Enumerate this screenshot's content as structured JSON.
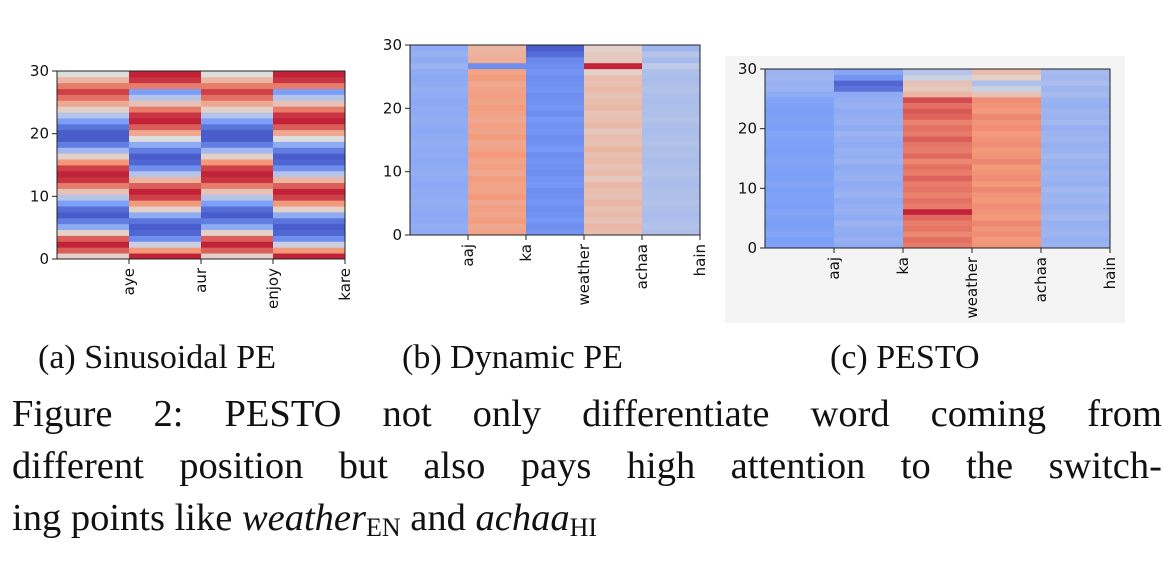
{
  "chart_data": [
    {
      "type": "heatmap",
      "panel_caption": "(a) Sinusoidal PE",
      "colormap": "coolwarm",
      "x_tick_labels": [
        "aye",
        "aur",
        "enjoy",
        "kare"
      ],
      "y_ticks": [
        0,
        10,
        20,
        30
      ],
      "ylim": [
        0,
        30
      ],
      "rows": 32,
      "columns": [
        {
          "label": "aye",
          "values": [
            0.55,
            0.85,
            0.95,
            0.85,
            0.55,
            0.3,
            0.15,
            0.05,
            0.1,
            0.25,
            0.4,
            0.6,
            0.8,
            0.92,
            0.95,
            0.9,
            0.75,
            0.55,
            0.35,
            0.15,
            0.05,
            0.05,
            0.12,
            0.25,
            0.4,
            0.55,
            0.7,
            0.82,
            0.9,
            0.8,
            0.65,
            0.5
          ]
        },
        {
          "label": "aur",
          "values": [
            0.95,
            0.75,
            0.45,
            0.2,
            0.08,
            0.05,
            0.12,
            0.3,
            0.55,
            0.75,
            0.9,
            0.95,
            0.85,
            0.65,
            0.4,
            0.2,
            0.08,
            0.05,
            0.15,
            0.3,
            0.5,
            0.7,
            0.85,
            0.95,
            0.92,
            0.8,
            0.6,
            0.4,
            0.25,
            0.8,
            0.92,
            0.95
          ]
        },
        {
          "label": "enjoy",
          "values": [
            0.55,
            0.85,
            0.95,
            0.85,
            0.55,
            0.3,
            0.15,
            0.05,
            0.1,
            0.25,
            0.4,
            0.6,
            0.8,
            0.92,
            0.95,
            0.9,
            0.75,
            0.55,
            0.35,
            0.15,
            0.05,
            0.05,
            0.12,
            0.25,
            0.4,
            0.55,
            0.7,
            0.82,
            0.9,
            0.8,
            0.65,
            0.5
          ]
        },
        {
          "label": "kare",
          "values": [
            0.95,
            0.75,
            0.45,
            0.2,
            0.08,
            0.05,
            0.12,
            0.3,
            0.55,
            0.75,
            0.9,
            0.95,
            0.85,
            0.65,
            0.4,
            0.2,
            0.08,
            0.05,
            0.15,
            0.3,
            0.5,
            0.7,
            0.85,
            0.95,
            0.92,
            0.8,
            0.6,
            0.4,
            0.25,
            0.8,
            0.92,
            0.95
          ]
        }
      ]
    },
    {
      "type": "heatmap",
      "panel_caption": "(b) Dynamic PE",
      "colormap": "coolwarm",
      "x_tick_labels": [
        "aaj",
        "ka",
        "weather",
        "achaa",
        "hain"
      ],
      "y_ticks": [
        0,
        10,
        20,
        30
      ],
      "ylim": [
        0,
        30
      ],
      "rows": 32,
      "columns": [
        {
          "label": "aaj",
          "values": [
            0.3,
            0.31,
            0.3,
            0.29,
            0.3,
            0.31,
            0.3,
            0.3,
            0.29,
            0.3,
            0.31,
            0.3,
            0.29,
            0.3,
            0.3,
            0.31,
            0.3,
            0.29,
            0.3,
            0.31,
            0.3,
            0.3,
            0.29,
            0.3,
            0.31,
            0.3,
            0.29,
            0.3,
            0.33,
            0.3,
            0.32,
            0.3
          ]
        },
        {
          "label": "ka",
          "values": [
            0.72,
            0.7,
            0.74,
            0.71,
            0.73,
            0.7,
            0.75,
            0.71,
            0.72,
            0.74,
            0.7,
            0.73,
            0.71,
            0.75,
            0.72,
            0.7,
            0.74,
            0.71,
            0.73,
            0.7,
            0.72,
            0.74,
            0.71,
            0.73,
            0.72,
            0.7,
            0.74,
            0.72,
            0.2,
            0.68,
            0.66,
            0.65
          ]
        },
        {
          "label": "weather",
          "values": [
            0.22,
            0.2,
            0.23,
            0.21,
            0.2,
            0.22,
            0.21,
            0.2,
            0.23,
            0.22,
            0.2,
            0.21,
            0.22,
            0.2,
            0.23,
            0.21,
            0.2,
            0.22,
            0.21,
            0.23,
            0.2,
            0.22,
            0.21,
            0.2,
            0.22,
            0.21,
            0.2,
            0.22,
            0.2,
            0.18,
            0.1,
            0.05
          ]
        },
        {
          "label": "achaa",
          "values": [
            0.62,
            0.64,
            0.6,
            0.63,
            0.61,
            0.65,
            0.6,
            0.62,
            0.64,
            0.58,
            0.62,
            0.6,
            0.63,
            0.61,
            0.65,
            0.6,
            0.62,
            0.58,
            0.63,
            0.61,
            0.6,
            0.64,
            0.62,
            0.6,
            0.63,
            0.61,
            0.62,
            0.55,
            0.95,
            0.58,
            0.57,
            0.55
          ]
        },
        {
          "label": "hain",
          "values": [
            0.38,
            0.39,
            0.38,
            0.37,
            0.38,
            0.39,
            0.38,
            0.38,
            0.37,
            0.38,
            0.39,
            0.38,
            0.37,
            0.38,
            0.38,
            0.39,
            0.38,
            0.37,
            0.38,
            0.39,
            0.38,
            0.38,
            0.37,
            0.38,
            0.39,
            0.38,
            0.37,
            0.38,
            0.42,
            0.36,
            0.4,
            0.34
          ]
        }
      ]
    },
    {
      "type": "heatmap",
      "panel_caption": "(c) PESTO",
      "colormap": "coolwarm",
      "x_tick_labels": [
        "aaj",
        "ka",
        "weather",
        "achaa",
        "hain"
      ],
      "y_ticks": [
        0,
        10,
        20,
        30
      ],
      "ylim": [
        0,
        30
      ],
      "rows": 32,
      "columns": [
        {
          "label": "aaj",
          "values": [
            0.26,
            0.25,
            0.27,
            0.26,
            0.25,
            0.26,
            0.27,
            0.25,
            0.26,
            0.26,
            0.25,
            0.27,
            0.26,
            0.25,
            0.26,
            0.27,
            0.26,
            0.25,
            0.26,
            0.26,
            0.27,
            0.25,
            0.26,
            0.26,
            0.25,
            0.26,
            0.27,
            0.3,
            0.33,
            0.32,
            0.34,
            0.33
          ]
        },
        {
          "label": "ka",
          "values": [
            0.3,
            0.32,
            0.3,
            0.31,
            0.33,
            0.3,
            0.32,
            0.31,
            0.3,
            0.33,
            0.31,
            0.3,
            0.32,
            0.31,
            0.3,
            0.33,
            0.31,
            0.32,
            0.3,
            0.31,
            0.33,
            0.3,
            0.32,
            0.31,
            0.3,
            0.32,
            0.31,
            0.3,
            0.12,
            0.08,
            0.22,
            0.28
          ]
        },
        {
          "label": "weather",
          "values": [
            0.8,
            0.82,
            0.78,
            0.81,
            0.8,
            0.83,
            0.95,
            0.8,
            0.82,
            0.79,
            0.81,
            0.8,
            0.84,
            0.8,
            0.82,
            0.78,
            0.83,
            0.8,
            0.81,
            0.85,
            0.8,
            0.82,
            0.79,
            0.84,
            0.86,
            0.82,
            0.88,
            0.65,
            0.58,
            0.6,
            0.45,
            0.4
          ]
        },
        {
          "label": "achaa",
          "values": [
            0.76,
            0.75,
            0.77,
            0.76,
            0.78,
            0.75,
            0.76,
            0.77,
            0.75,
            0.76,
            0.78,
            0.75,
            0.77,
            0.76,
            0.75,
            0.78,
            0.76,
            0.75,
            0.77,
            0.76,
            0.75,
            0.77,
            0.76,
            0.78,
            0.75,
            0.76,
            0.77,
            0.6,
            0.45,
            0.38,
            0.55,
            0.62
          ]
        },
        {
          "label": "hain",
          "values": [
            0.33,
            0.32,
            0.34,
            0.33,
            0.32,
            0.35,
            0.33,
            0.32,
            0.34,
            0.33,
            0.35,
            0.32,
            0.33,
            0.34,
            0.32,
            0.33,
            0.35,
            0.33,
            0.32,
            0.34,
            0.33,
            0.32,
            0.35,
            0.33,
            0.34,
            0.32,
            0.33,
            0.36,
            0.34,
            0.37,
            0.35,
            0.36
          ]
        }
      ]
    }
  ],
  "figure_caption": {
    "line1": "Figure 2: PESTO not only differentiate word coming from",
    "line2": "different position but also pays high attention to the switch-",
    "line3_prefix": "ing points like ",
    "word1": "weather",
    "sub1": "EN",
    "line3_middle": " and ",
    "word2": "achaa",
    "sub2": "HI"
  }
}
